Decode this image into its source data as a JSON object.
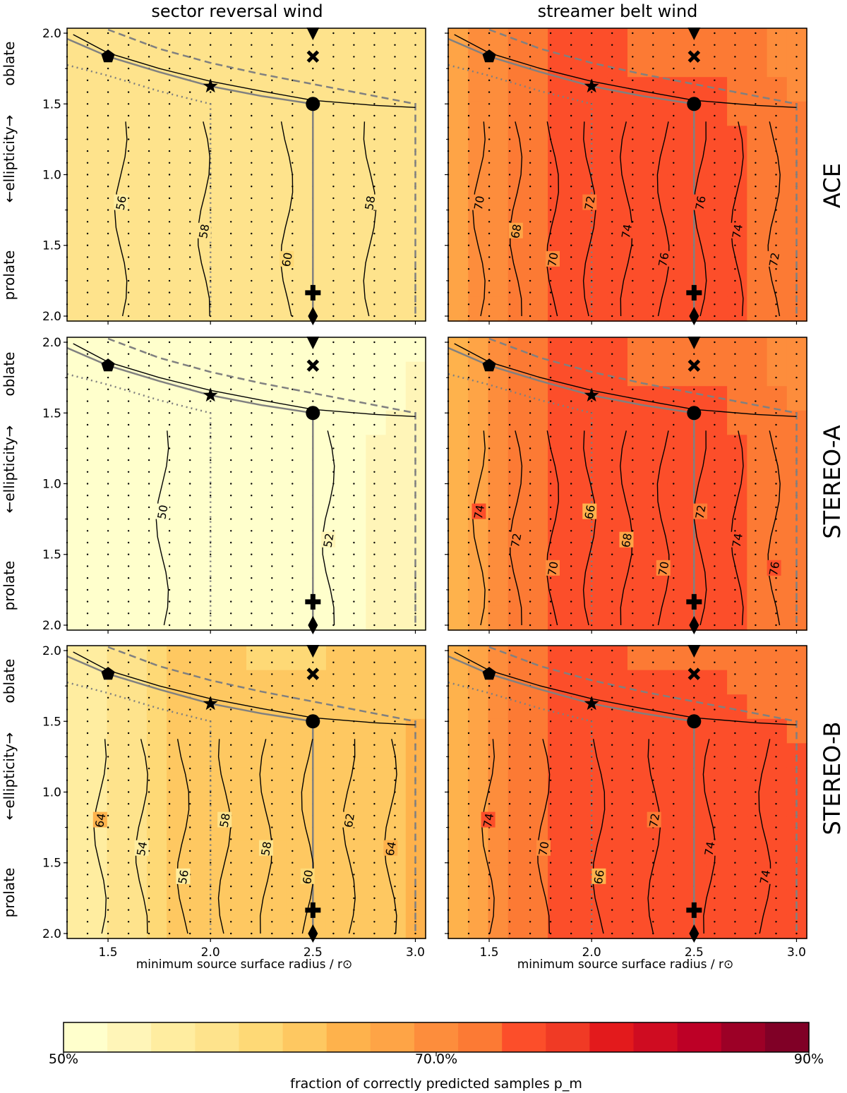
{
  "figure": {
    "column_titles": [
      "sector reversal wind",
      "streamer belt wind"
    ],
    "row_titles": [
      "ACE",
      "STEREO-A",
      "STEREO-B"
    ],
    "xlabel": "minimum source surface radius / r⊙",
    "ylabel_left": "prolate",
    "ylabel_mid": "←ellipticity→",
    "ylabel_right": "oblate",
    "colorbar_label": "fraction of correctly predicted samples p_m",
    "colorbar_ticks": [
      "50%",
      "70.0%",
      "90%"
    ]
  },
  "chart_data": {
    "type": "heatmap",
    "x_ticks": [
      "1.5",
      "2.0",
      "2.5",
      "3.0"
    ],
    "y_ticks": [
      "2.0",
      "1.5",
      "1.0",
      "1.5",
      "2.0"
    ],
    "xlim": [
      1.3,
      3.05
    ],
    "ylim_label": "prolate 2.0 ... 1.0 ... 2.0 oblate",
    "colorbar_range": [
      50,
      90
    ],
    "colorbar_step": 2,
    "colormap": [
      "#ffffcc",
      "#fff5b8",
      "#ffeda0",
      "#fee38c",
      "#fed976",
      "#fec861",
      "#feb24c",
      "#fea446",
      "#fd8d3c",
      "#fc7a34",
      "#fc4e2a",
      "#f03a25",
      "#e31a1c",
      "#cf0c21",
      "#bd0026",
      "#9c0026",
      "#800026"
    ],
    "markers": {
      "pentagon": [
        1.5,
        1.67
      ],
      "star": [
        2.0,
        1.25
      ],
      "circle": [
        2.5,
        1.0
      ],
      "cross": [
        2.5,
        1.67
      ],
      "plus": [
        2.5,
        -1.67
      ],
      "triangle": [
        2.5,
        2.0
      ],
      "diamond": [
        2.5,
        -2.0
      ]
    },
    "panels": [
      {
        "name": "ace-sector-reversal",
        "base_value": 58.5,
        "left_value": 57.5,
        "right_value": 58.5,
        "contour_labels": [
          "56",
          "58",
          "60",
          "58"
        ]
      },
      {
        "name": "ace-streamer-belt",
        "base_value": 75,
        "left_value": 68,
        "right_value": 72,
        "contour_labels": [
          "70",
          "68",
          "70",
          "72",
          "74",
          "76",
          "76",
          "74",
          "72"
        ]
      },
      {
        "name": "stereo-a-sector-reversal",
        "base_value": 50.5,
        "left_value": 50,
        "right_value": 52,
        "contour_labels": [
          "50",
          "52"
        ]
      },
      {
        "name": "stereo-a-streamer-belt",
        "base_value": 75,
        "left_value": 66,
        "right_value": 72,
        "contour_labels": [
          "74",
          "72",
          "70",
          "66",
          "68",
          "70",
          "72",
          "74",
          "76"
        ]
      },
      {
        "name": "stereo-b-sector-reversal",
        "base_value": 62,
        "left_value": 54,
        "right_value": 64,
        "contour_labels": [
          "64",
          "54",
          "56",
          "58",
          "58",
          "60",
          "62",
          "64"
        ]
      },
      {
        "name": "stereo-b-streamer-belt",
        "base_value": 75.5,
        "left_value": 66,
        "right_value": 74,
        "contour_labels": [
          "74",
          "70",
          "66",
          "72",
          "74",
          "74"
        ]
      }
    ]
  }
}
